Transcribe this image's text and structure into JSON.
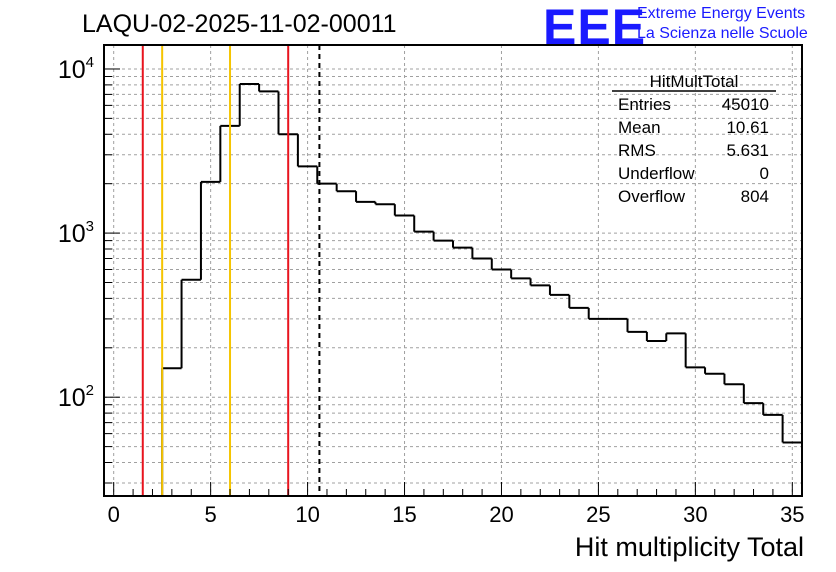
{
  "header": {
    "title": "LAQU-02-2025-11-02-00011",
    "logo": "EEE",
    "logo_line1": "Extreme Energy Events",
    "logo_line2": "La Scienza nelle Scuole"
  },
  "colors": {
    "frame": "#000000",
    "grid": "#a0a0a0",
    "red": "#e8141e",
    "yellow": "#f5c400",
    "logo": "#1a1aff"
  },
  "chart_data": {
    "type": "bar",
    "title": "LAQU-02-2025-11-02-00011",
    "xlabel": "Hit multiplicity Total",
    "ylabel": "",
    "xlim": [
      -0.5,
      35.5
    ],
    "ylim": [
      25,
      14000
    ],
    "yscale": "log",
    "grid": true,
    "bin_width": 1,
    "x_ticks": [
      0,
      5,
      10,
      15,
      20,
      25,
      30,
      35
    ],
    "y_ticks": [
      {
        "value": 100,
        "base": "10",
        "exp": "2"
      },
      {
        "value": 1000,
        "base": "10",
        "exp": "3"
      },
      {
        "value": 10000,
        "base": "10",
        "exp": "4"
      }
    ],
    "bin_lows": [
      -0.5,
      0.5,
      1.5,
      2.5,
      3.5,
      4.5,
      5.5,
      6.5,
      7.5,
      8.5,
      9.5,
      10.5,
      11.5,
      12.5,
      13.5,
      14.5,
      15.5,
      16.5,
      17.5,
      18.5,
      19.5,
      20.5,
      21.5,
      22.5,
      23.5,
      24.5,
      25.5,
      26.5,
      27.5,
      28.5,
      29.5,
      30.5,
      31.5,
      32.5,
      33.5,
      34.5
    ],
    "values": [
      0,
      0,
      0,
      150,
      520,
      2050,
      4500,
      8100,
      7300,
      4000,
      2550,
      2000,
      1800,
      1550,
      1500,
      1280,
      1020,
      900,
      815,
      700,
      600,
      530,
      480,
      420,
      350,
      300,
      300,
      250,
      220,
      245,
      152,
      139,
      120,
      92,
      78,
      53
    ],
    "vlines": [
      {
        "x": 1.5,
        "color": "red",
        "style": "solid"
      },
      {
        "x": 2.5,
        "color": "yellow",
        "style": "solid"
      },
      {
        "x": 6.0,
        "color": "yellow",
        "style": "solid"
      },
      {
        "x": 9.0,
        "color": "red",
        "style": "solid"
      },
      {
        "x": 10.61,
        "color": "black",
        "style": "dashed"
      }
    ],
    "stats": {
      "title": "HitMultTotal",
      "rows": [
        {
          "label": "Entries",
          "value": "45010"
        },
        {
          "label": "Mean",
          "value": "10.61"
        },
        {
          "label": "RMS",
          "value": "5.631"
        },
        {
          "label": "Underflow",
          "value": "0"
        },
        {
          "label": "Overflow",
          "value": "804"
        }
      ]
    }
  }
}
